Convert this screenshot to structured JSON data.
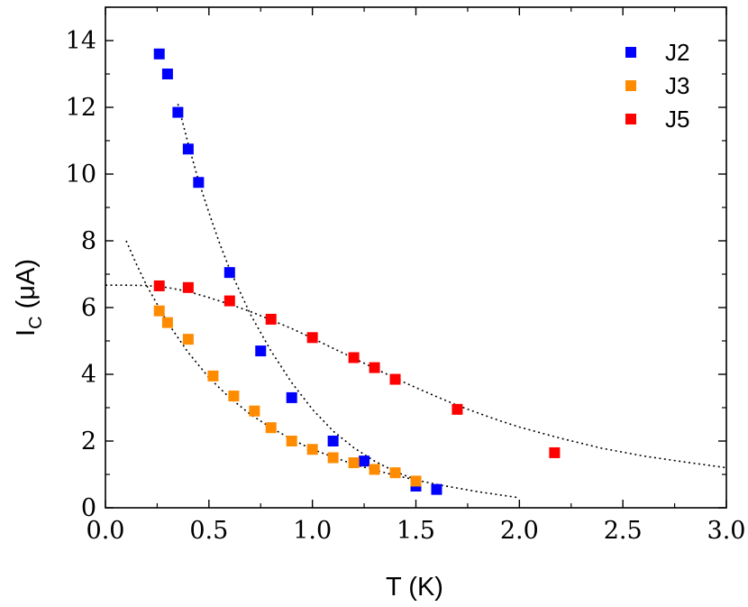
{
  "chart_data": {
    "type": "scatter",
    "xlabel": "T (K)",
    "ylabel": {
      "main": "I",
      "sub": "C",
      "rest": " (μA)"
    },
    "xlim": [
      0,
      3
    ],
    "ylim": [
      0,
      15
    ],
    "xticks": [
      0.0,
      0.5,
      1.0,
      1.5,
      2.0,
      2.5,
      3.0
    ],
    "xtick_labels": [
      "0.0",
      "0.5",
      "1.0",
      "1.5",
      "2.0",
      "2.5",
      "3.0"
    ],
    "yticks": [
      0,
      2,
      4,
      6,
      8,
      10,
      12,
      14
    ],
    "ytick_labels": [
      "0",
      "2",
      "4",
      "6",
      "8",
      "10",
      "12",
      "14"
    ],
    "legend_position": "top-right",
    "series": [
      {
        "name": "J2",
        "color": "#0000ff",
        "points": [
          [
            0.26,
            13.6
          ],
          [
            0.3,
            13.0
          ],
          [
            0.35,
            11.85
          ],
          [
            0.4,
            10.75
          ],
          [
            0.45,
            9.75
          ],
          [
            0.6,
            7.05
          ],
          [
            0.75,
            4.7
          ],
          [
            0.9,
            3.3
          ],
          [
            1.1,
            2.0
          ],
          [
            1.25,
            1.4
          ],
          [
            1.5,
            0.65
          ],
          [
            1.6,
            0.55
          ]
        ],
        "fit": [
          [
            0.35,
            12.1
          ],
          [
            0.4,
            10.9
          ],
          [
            0.45,
            9.8
          ],
          [
            0.5,
            8.85
          ],
          [
            0.55,
            7.95
          ],
          [
            0.6,
            7.15
          ],
          [
            0.7,
            5.8
          ],
          [
            0.8,
            4.7
          ],
          [
            0.9,
            3.75
          ],
          [
            1.0,
            2.95
          ],
          [
            1.1,
            2.3
          ],
          [
            1.2,
            1.8
          ],
          [
            1.3,
            1.4
          ],
          [
            1.4,
            1.08
          ],
          [
            1.5,
            0.85
          ]
        ]
      },
      {
        "name": "J3",
        "color": "#ff8c00",
        "points": [
          [
            0.26,
            5.9
          ],
          [
            0.3,
            5.55
          ],
          [
            0.4,
            5.05
          ],
          [
            0.52,
            3.95
          ],
          [
            0.62,
            3.35
          ],
          [
            0.72,
            2.9
          ],
          [
            0.8,
            2.4
          ],
          [
            0.9,
            2.0
          ],
          [
            1.0,
            1.75
          ],
          [
            1.1,
            1.5
          ],
          [
            1.2,
            1.35
          ],
          [
            1.3,
            1.15
          ],
          [
            1.4,
            1.05
          ],
          [
            1.5,
            0.8
          ]
        ],
        "fit": [
          [
            0.1,
            8.0
          ],
          [
            0.15,
            7.3
          ],
          [
            0.2,
            6.65
          ],
          [
            0.3,
            5.55
          ],
          [
            0.4,
            4.65
          ],
          [
            0.5,
            3.9
          ],
          [
            0.6,
            3.3
          ],
          [
            0.7,
            2.8
          ],
          [
            0.8,
            2.4
          ],
          [
            0.9,
            2.05
          ],
          [
            1.0,
            1.75
          ],
          [
            1.2,
            1.3
          ],
          [
            1.4,
            0.97
          ],
          [
            1.6,
            0.7
          ],
          [
            1.8,
            0.48
          ],
          [
            2.0,
            0.3
          ]
        ]
      },
      {
        "name": "J5",
        "color": "#ff0000",
        "points": [
          [
            0.26,
            6.65
          ],
          [
            0.4,
            6.6
          ],
          [
            0.6,
            6.2
          ],
          [
            0.8,
            5.65
          ],
          [
            1.0,
            5.1
          ],
          [
            1.2,
            4.5
          ],
          [
            1.3,
            4.2
          ],
          [
            1.4,
            3.85
          ],
          [
            1.7,
            2.95
          ],
          [
            2.17,
            1.65
          ]
        ],
        "fit": [
          [
            0.0,
            6.67
          ],
          [
            0.1,
            6.67
          ],
          [
            0.2,
            6.66
          ],
          [
            0.3,
            6.6
          ],
          [
            0.4,
            6.48
          ],
          [
            0.5,
            6.3
          ],
          [
            0.6,
            6.1
          ],
          [
            0.7,
            5.88
          ],
          [
            0.8,
            5.63
          ],
          [
            0.9,
            5.37
          ],
          [
            1.0,
            5.08
          ],
          [
            1.1,
            4.78
          ],
          [
            1.2,
            4.48
          ],
          [
            1.3,
            4.18
          ],
          [
            1.4,
            3.88
          ],
          [
            1.5,
            3.6
          ],
          [
            1.6,
            3.33
          ],
          [
            1.7,
            3.07
          ],
          [
            1.8,
            2.84
          ],
          [
            1.9,
            2.62
          ],
          [
            2.0,
            2.42
          ],
          [
            2.2,
            2.08
          ],
          [
            2.4,
            1.78
          ],
          [
            2.6,
            1.55
          ],
          [
            2.8,
            1.37
          ],
          [
            3.0,
            1.2
          ]
        ]
      }
    ]
  }
}
